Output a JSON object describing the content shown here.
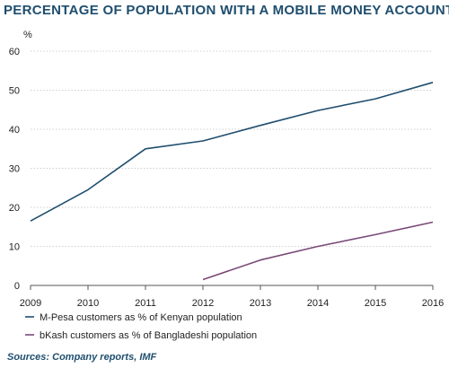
{
  "chart_data": {
    "type": "line",
    "title": "PERCENTAGE OF POPULATION WITH A MOBILE MONEY ACCOUNT",
    "ylabel": "%",
    "xlabel": "",
    "x": [
      "2009",
      "2010",
      "2011",
      "2012",
      "2013",
      "2014",
      "2015",
      "2016"
    ],
    "yticks": [
      "0",
      "10",
      "20",
      "30",
      "40",
      "50",
      "60"
    ],
    "ylim": [
      0,
      60
    ],
    "grid": "horizontal",
    "legend_position": "bottom-left",
    "series": [
      {
        "name": "M-Pesa customers as % of Kenyan population",
        "color": "#1f4e6e",
        "values": [
          16.5,
          24.5,
          35,
          37,
          41,
          44.8,
          47.8,
          52
        ]
      },
      {
        "name": "bKash customers as % of Bangladeshi population",
        "color": "#7a4a78",
        "values": [
          null,
          null,
          null,
          1.5,
          6.5,
          10,
          13,
          16.2
        ]
      }
    ]
  },
  "source": "Sources: Company reports, IMF"
}
